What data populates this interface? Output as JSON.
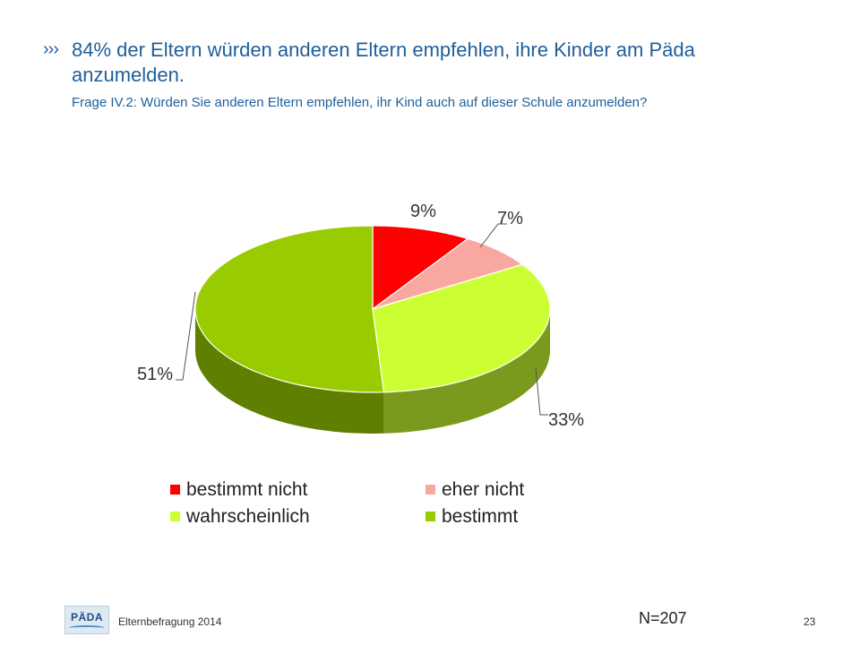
{
  "slide": {
    "bullet": "›››",
    "title": "84% der Eltern würden anderen Eltern empfehlen, ihre Kinder am Päda anzumelden.",
    "subtitle": "Frage IV.2: Würden Sie anderen Eltern empfehlen, ihr Kind auch auf dieser Schule anzumelden?",
    "footer_text": "Elternbefragung 2014",
    "logo_text": "PÄDA",
    "sample_size": "N=207",
    "page_number": "23"
  },
  "chart_data": {
    "type": "pie",
    "style": "3d",
    "categories": [
      "bestimmt nicht",
      "eher nicht",
      "wahrscheinlich",
      "bestimmt"
    ],
    "values": [
      9,
      7,
      33,
      51
    ],
    "labels": [
      "9%",
      "7%",
      "33%",
      "51%"
    ],
    "colors": [
      "#ff0000",
      "#f8a8a0",
      "#ccff33",
      "#99cc00"
    ],
    "side_colors": [
      "#9e0000",
      "#a87068",
      "#7a9a1e",
      "#5f7f00"
    ],
    "legend_position": "bottom"
  }
}
